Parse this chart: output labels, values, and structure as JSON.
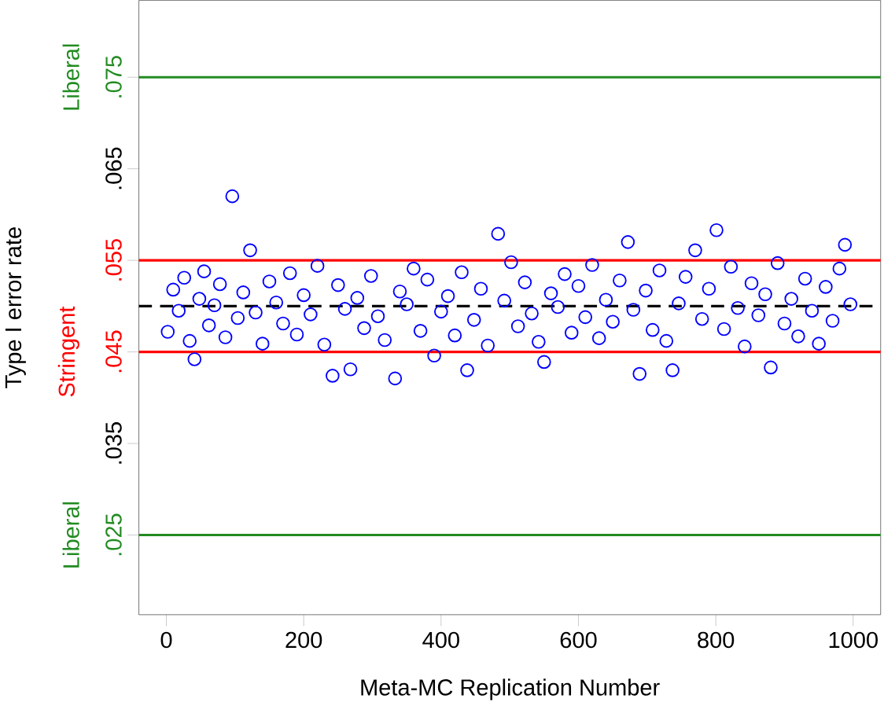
{
  "chart_data": {
    "type": "scatter",
    "xlabel": "Meta-MC Replication Number",
    "ylabel": "Type I error rate",
    "xlim": [
      -40,
      1040
    ],
    "ylim": [
      0.0163,
      0.0834
    ],
    "xticks": [
      0,
      200,
      400,
      600,
      800,
      1000
    ],
    "yticks": [
      {
        "value": 0.025,
        "label": ".025"
      },
      {
        "value": 0.035,
        "label": ".035"
      },
      {
        "value": 0.045,
        "label": ".045"
      },
      {
        "value": 0.055,
        "label": ".055"
      },
      {
        "value": 0.065,
        "label": ".065"
      },
      {
        "value": 0.075,
        "label": ".075"
      }
    ],
    "marker": "circle",
    "grid": false,
    "series": [
      {
        "color": "#0000ff",
        "x": [
          2,
          10,
          18,
          26,
          34,
          41,
          48,
          55,
          62,
          70,
          78,
          86,
          96,
          104,
          112,
          122,
          130,
          140,
          150,
          160,
          170,
          180,
          190,
          200,
          210,
          220,
          230,
          242,
          250,
          260,
          268,
          278,
          288,
          298,
          308,
          318,
          333,
          340,
          350,
          360,
          370,
          380,
          390,
          400,
          410,
          420,
          430,
          438,
          448,
          458,
          468,
          483,
          492,
          502,
          512,
          522,
          532,
          542,
          550,
          560,
          570,
          580,
          590,
          600,
          610,
          620,
          630,
          640,
          650,
          660,
          672,
          680,
          689,
          698,
          708,
          718,
          728,
          737,
          746,
          756,
          770,
          780,
          790,
          801,
          812,
          822,
          832,
          842,
          852,
          862,
          872,
          880,
          890,
          900,
          910,
          920,
          930,
          940,
          950,
          960,
          970,
          980,
          988,
          996
        ],
        "values": [
          0.0472,
          0.0518,
          0.0495,
          0.0531,
          0.0462,
          0.0442,
          0.0508,
          0.0538,
          0.0479,
          0.0501,
          0.0524,
          0.0466,
          0.062,
          0.0487,
          0.0515,
          0.0561,
          0.0493,
          0.0459,
          0.0527,
          0.0504,
          0.0481,
          0.0536,
          0.0469,
          0.0512,
          0.0491,
          0.0544,
          0.0458,
          0.0424,
          0.0523,
          0.0497,
          0.0431,
          0.0509,
          0.0476,
          0.0533,
          0.0489,
          0.0463,
          0.0421,
          0.0516,
          0.0502,
          0.0541,
          0.0473,
          0.0529,
          0.0446,
          0.0494,
          0.0511,
          0.0468,
          0.0537,
          0.043,
          0.0485,
          0.0519,
          0.0457,
          0.0579,
          0.0506,
          0.0548,
          0.0478,
          0.0526,
          0.0492,
          0.0461,
          0.0439,
          0.0514,
          0.0499,
          0.0535,
          0.0471,
          0.0522,
          0.0488,
          0.0545,
          0.0465,
          0.0507,
          0.0483,
          0.0528,
          0.057,
          0.0496,
          0.0426,
          0.0517,
          0.0474,
          0.0539,
          0.0462,
          0.043,
          0.0503,
          0.0532,
          0.0561,
          0.0486,
          0.0519,
          0.0583,
          0.0475,
          0.0543,
          0.0498,
          0.0456,
          0.0525,
          0.049,
          0.0513,
          0.0433,
          0.0547,
          0.0481,
          0.0508,
          0.0467,
          0.053,
          0.0495,
          0.0459,
          0.0521,
          0.0484,
          0.0541,
          0.0567,
          0.0502
        ]
      }
    ],
    "ref_lines": [
      {
        "axis": "y",
        "value": 0.075,
        "label": "Liberal",
        "color": "#228b22",
        "line_style": "solid"
      },
      {
        "axis": "y",
        "value": 0.025,
        "label": "Liberal",
        "color": "#228b22",
        "line_style": "solid"
      },
      {
        "axis": "y",
        "value": 0.045,
        "label": "Stringent",
        "color": "#ff0000",
        "line_style": "solid"
      },
      {
        "axis": "y",
        "value": 0.055,
        "color": "#ff0000",
        "line_style": "solid"
      },
      {
        "axis": "y",
        "value": 0.05,
        "color": "#000000",
        "line_style": "dashed"
      }
    ]
  }
}
